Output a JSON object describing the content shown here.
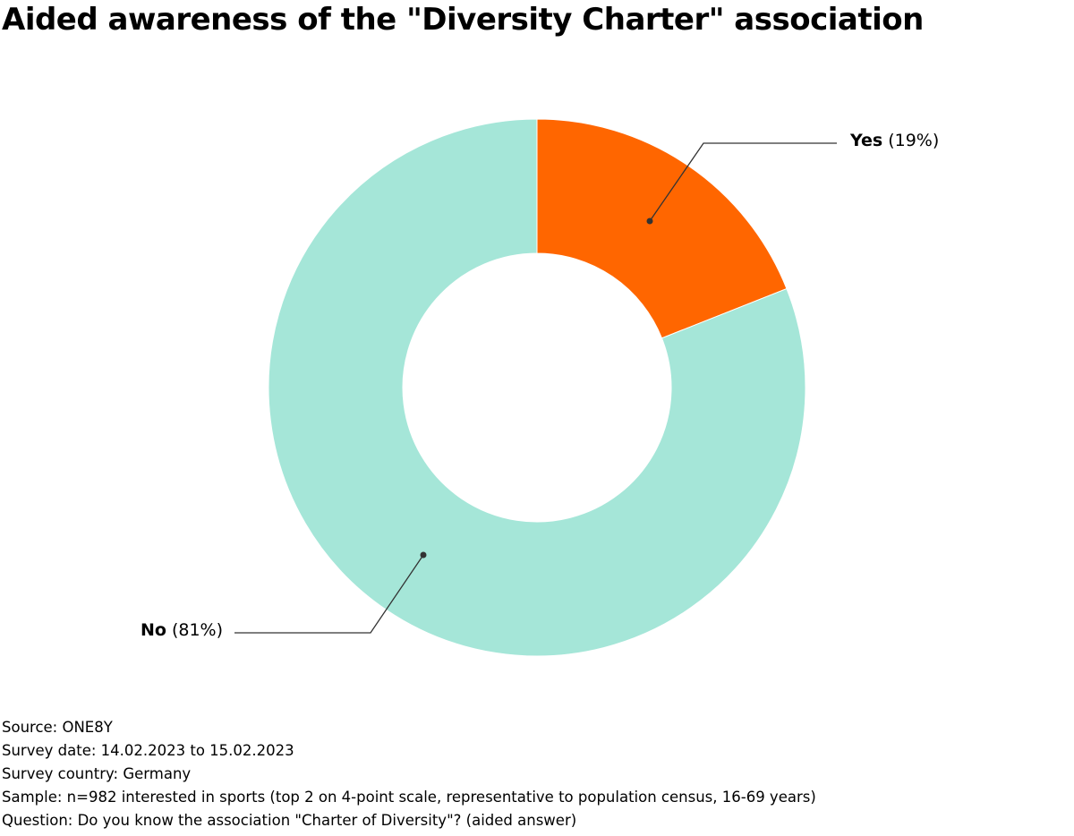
{
  "chart_data": {
    "type": "pie",
    "variant": "donut",
    "title": "Aided awareness of the \"Diversity Charter\" association",
    "slices": [
      {
        "name": "Yes",
        "value": 19,
        "label_value": "(19%)",
        "color": "#FF6600"
      },
      {
        "name": "No",
        "value": 81,
        "label_value": "(81%)",
        "color": "#A5E6D8"
      }
    ]
  },
  "footer": {
    "source": "Source: ONE8Y",
    "date": "Survey date: 14.02.2023 to 15.02.2023",
    "country": "Survey country: Germany",
    "sample": "Sample: n=982 interested in sports (top 2 on 4-point scale, representative to population census, 16-69 years)",
    "question": "Question: Do you know the association \"Charter of Diversity\"? (aided answer)"
  }
}
